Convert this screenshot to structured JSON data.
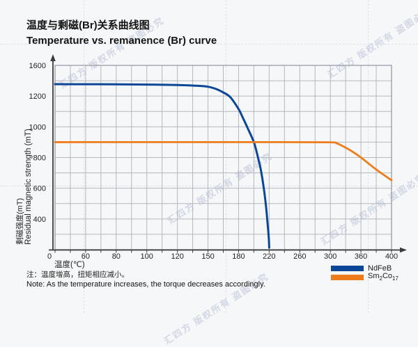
{
  "title": {
    "zh": "温度与剩磁(Br)关系曲线图",
    "en": "Temperature vs. remanence (Br) curve"
  },
  "note": {
    "zh": "注：温度增高，扭矩相应减小。",
    "en": "Note: As the temperature increases, the torque decreases accordingly."
  },
  "watermark": {
    "text": "汇四方 版权所有 盗图必究"
  },
  "chart_data": {
    "type": "line",
    "xlabel": "温度(℃)",
    "ylabel_zh": "剩磁强度(mT)",
    "ylabel_en": "Residual magnetic strength (mT)",
    "x_unit": "°C",
    "y_unit": "mT",
    "x_grid_values": [
      0,
      30,
      60,
      70,
      80,
      90,
      100,
      110,
      120,
      135,
      150,
      165,
      180,
      200,
      220,
      240,
      260,
      280,
      300,
      330,
      360,
      380,
      400
    ],
    "y_grid_values": [
      1600,
      1400,
      1200,
      1100,
      1000,
      900,
      800,
      700,
      600,
      500,
      400,
      200,
      0
    ],
    "x_tick_labels": [
      0,
      60,
      80,
      100,
      120,
      150,
      180,
      220,
      260,
      300,
      360,
      400
    ],
    "y_tick_labels": [
      1600,
      1200,
      1000,
      800,
      600,
      400
    ],
    "grid": true,
    "legend_position": "bottom-right",
    "series": [
      {
        "name": "NdFeB",
        "name_parts": [
          {
            "t": "NdFeB"
          }
        ],
        "color": "#0b4697",
        "width": 3,
        "points": [
          [
            0,
            1355
          ],
          [
            40,
            1355
          ],
          [
            80,
            1353
          ],
          [
            100,
            1350
          ],
          [
            120,
            1345
          ],
          [
            140,
            1334
          ],
          [
            150,
            1322
          ],
          [
            158,
            1292
          ],
          [
            165,
            1248
          ],
          [
            172,
            1192
          ],
          [
            180,
            1115
          ],
          [
            186,
            1055
          ],
          [
            192,
            990
          ],
          [
            200,
            900
          ],
          [
            205,
            808
          ],
          [
            209,
            722
          ],
          [
            213,
            598
          ],
          [
            216,
            475
          ],
          [
            218,
            330
          ],
          [
            219.5,
            155
          ],
          [
            220,
            25
          ]
        ]
      },
      {
        "name": "Sm2Co17",
        "name_parts": [
          {
            "t": "Sm"
          },
          {
            "t": "2",
            "sub": true
          },
          {
            "t": "Co"
          },
          {
            "t": "17",
            "sub": true
          }
        ],
        "color": "#ee7c1b",
        "width": 2.8,
        "points": [
          [
            0,
            900
          ],
          [
            80,
            900
          ],
          [
            160,
            900
          ],
          [
            240,
            900
          ],
          [
            300,
            899
          ],
          [
            312,
            893
          ],
          [
            325,
            873
          ],
          [
            340,
            845
          ],
          [
            360,
            800
          ],
          [
            380,
            722
          ],
          [
            400,
            652
          ]
        ]
      }
    ]
  },
  "style": {
    "grid_color": "#b4b7bd",
    "border_color": "#9fa3aa",
    "axis_color": "#3c3c3c",
    "tick_text_color": "#1f1f1f"
  }
}
